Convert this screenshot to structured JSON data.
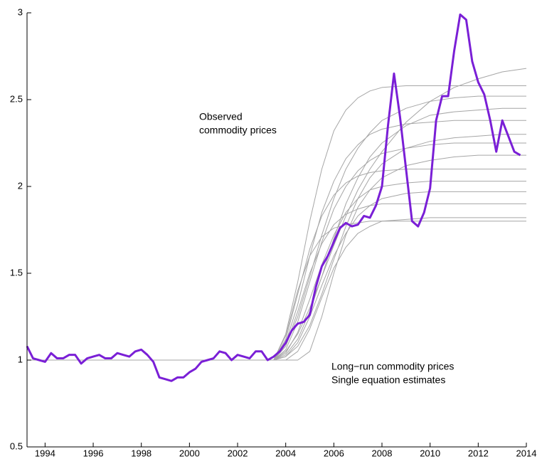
{
  "chart_data": {
    "type": "line",
    "xlim": [
      1993.25,
      2014
    ],
    "ylim": [
      0.5,
      3
    ],
    "xticks": [
      1994,
      1996,
      1998,
      2000,
      2002,
      2004,
      2006,
      2008,
      2010,
      2012,
      2014
    ],
    "yticks": [
      0.5,
      1,
      1.5,
      2,
      2.5,
      3
    ],
    "x": [
      1993.25,
      1993.5,
      1993.75,
      1994,
      1994.25,
      1994.5,
      1994.75,
      1995,
      1995.25,
      1995.5,
      1995.75,
      1996,
      1996.25,
      1996.5,
      1996.75,
      1997,
      1997.25,
      1997.5,
      1997.75,
      1998,
      1998.25,
      1998.5,
      1998.75,
      1999,
      1999.25,
      1999.5,
      1999.75,
      2000,
      2000.25,
      2000.5,
      2000.75,
      2001,
      2001.25,
      2001.5,
      2001.75,
      2002,
      2002.25,
      2002.5,
      2002.75,
      2003,
      2003.25,
      2003.5,
      2003.75,
      2004,
      2004.25,
      2004.5,
      2004.75,
      2005,
      2005.25,
      2005.5,
      2005.75,
      2006,
      2006.25,
      2006.5,
      2006.75,
      2007,
      2007.25,
      2007.5,
      2007.75,
      2008,
      2008.25,
      2008.5,
      2008.75,
      2009,
      2009.25,
      2009.5,
      2009.75,
      2010,
      2010.25,
      2010.5,
      2010.75,
      2011,
      2011.25,
      2011.5,
      2011.75,
      2012,
      2012.25,
      2012.5,
      2012.75,
      2013,
      2013.25,
      2013.5,
      2013.75
    ],
    "series": [
      {
        "color": "#7a1fd6",
        "values": [
          1.08,
          1.01,
          1.0,
          0.99,
          1.04,
          1.01,
          1.01,
          1.03,
          1.03,
          0.98,
          1.01,
          1.02,
          1.03,
          1.01,
          1.01,
          1.04,
          1.03,
          1.02,
          1.05,
          1.06,
          1.03,
          0.99,
          0.9,
          0.89,
          0.88,
          0.9,
          0.9,
          0.93,
          0.95,
          0.99,
          1.0,
          1.01,
          1.05,
          1.04,
          1.0,
          1.03,
          1.02,
          1.01,
          1.05,
          1.05,
          1.0,
          1.02,
          1.05,
          1.1,
          1.17,
          1.21,
          1.22,
          1.26,
          1.42,
          1.54,
          1.6,
          1.68,
          1.76,
          1.79,
          1.77,
          1.78,
          1.83,
          1.82,
          1.89,
          2.0,
          2.35,
          2.65,
          2.4,
          2.1,
          1.8,
          1.77,
          1.85,
          1.99,
          2.38,
          2.52,
          2.52,
          2.78,
          2.99,
          2.96,
          2.72,
          2.6,
          2.53,
          2.38,
          2.2,
          2.38,
          2.29,
          2.2,
          2.18
        ]
      }
    ],
    "estimate_x": [
      1993.25,
      2003.5,
      2004,
      2004.5,
      2005,
      2005.5,
      2006,
      2006.5,
      2007,
      2007.5,
      2008,
      2009,
      2010,
      2011,
      2012,
      2013,
      2014
    ],
    "estimates": {
      "color": "#a6a6a6",
      "series": [
        [
          1,
          1,
          1.05,
          1.15,
          1.3,
          1.48,
          1.66,
          1.83,
          1.98,
          2.1,
          2.2,
          2.37,
          2.49,
          2.57,
          2.62,
          2.66,
          2.68
        ],
        [
          1,
          1,
          1.15,
          1.45,
          1.8,
          2.1,
          2.32,
          2.44,
          2.51,
          2.55,
          2.57,
          2.58,
          2.58,
          2.58,
          2.58,
          2.58,
          2.58
        ],
        [
          1,
          1,
          1.08,
          1.25,
          1.48,
          1.72,
          1.93,
          2.1,
          2.22,
          2.31,
          2.38,
          2.45,
          2.49,
          2.51,
          2.52,
          2.52,
          2.52
        ],
        [
          1,
          1,
          1.03,
          1.12,
          1.28,
          1.48,
          1.7,
          1.9,
          2.05,
          2.17,
          2.25,
          2.35,
          2.41,
          2.43,
          2.44,
          2.45,
          2.45
        ],
        [
          1,
          1,
          1.1,
          1.32,
          1.6,
          1.85,
          2.03,
          2.16,
          2.24,
          2.3,
          2.33,
          2.36,
          2.37,
          2.38,
          2.38,
          2.38,
          2.38
        ],
        [
          1,
          1,
          1.02,
          1.08,
          1.2,
          1.38,
          1.58,
          1.77,
          1.93,
          2.05,
          2.13,
          2.22,
          2.26,
          2.28,
          2.29,
          2.3,
          2.3
        ],
        [
          1,
          1,
          1.06,
          1.22,
          1.45,
          1.68,
          1.87,
          2.0,
          2.09,
          2.15,
          2.19,
          2.22,
          2.24,
          2.25,
          2.25,
          2.25,
          2.25
        ],
        [
          1,
          1,
          1,
          1,
          1.05,
          1.25,
          1.5,
          1.72,
          1.88,
          1.98,
          2.05,
          2.12,
          2.15,
          2.17,
          2.18,
          2.18,
          2.18
        ],
        [
          1,
          1,
          1.12,
          1.38,
          1.64,
          1.83,
          1.95,
          2.02,
          2.06,
          2.08,
          2.09,
          2.1,
          2.1,
          2.1,
          2.1,
          2.1,
          2.1
        ],
        [
          1,
          1,
          1.04,
          1.16,
          1.35,
          1.55,
          1.72,
          1.85,
          1.93,
          1.98,
          2.0,
          2.02,
          2.03,
          2.03,
          2.03,
          2.03,
          2.03
        ],
        [
          1,
          1,
          1.02,
          1.1,
          1.25,
          1.43,
          1.6,
          1.73,
          1.83,
          1.89,
          1.93,
          1.96,
          1.97,
          1.97,
          1.97,
          1.97,
          1.97
        ],
        [
          1,
          1,
          1.08,
          1.28,
          1.5,
          1.67,
          1.78,
          1.84,
          1.87,
          1.89,
          1.9,
          1.9,
          1.9,
          1.9,
          1.9,
          1.9,
          1.9
        ],
        [
          1,
          1,
          1.0,
          1.05,
          1.18,
          1.36,
          1.53,
          1.65,
          1.73,
          1.77,
          1.8,
          1.81,
          1.82,
          1.82,
          1.82,
          1.82,
          1.82
        ],
        [
          1,
          1,
          1.14,
          1.4,
          1.6,
          1.71,
          1.76,
          1.78,
          1.79,
          1.8,
          1.8,
          1.8,
          1.8,
          1.8,
          1.8,
          1.8,
          1.8
        ]
      ]
    },
    "annotations": {
      "observed": [
        "Observed",
        "commodity prices"
      ],
      "estimates": [
        "Long−run commodity prices",
        "Single equation estimates"
      ]
    }
  }
}
